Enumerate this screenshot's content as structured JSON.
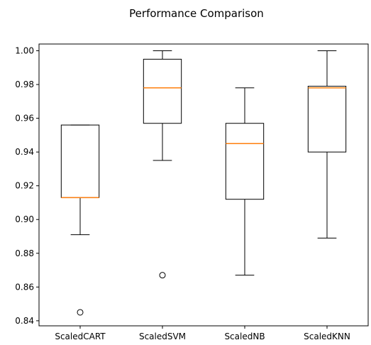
{
  "chart_data": {
    "type": "box",
    "title": "Performance Comparison",
    "xlabel": "",
    "ylabel": "",
    "ylim": [
      0.837,
      1.004
    ],
    "y_ticks": [
      "0.84",
      "0.86",
      "0.88",
      "0.90",
      "0.92",
      "0.94",
      "0.96",
      "0.98",
      "1.00"
    ],
    "categories": [
      "ScaledCART",
      "ScaledSVM",
      "ScaledNB",
      "ScaledKNN"
    ],
    "series": [
      {
        "category": "ScaledCART",
        "whisker_low": 0.891,
        "q1": 0.913,
        "median": 0.913,
        "q3": 0.956,
        "whisker_high": 0.956,
        "outliers": [
          0.845
        ]
      },
      {
        "category": "ScaledSVM",
        "whisker_low": 0.935,
        "q1": 0.957,
        "median": 0.978,
        "q3": 0.995,
        "whisker_high": 1.0,
        "outliers": [
          0.867
        ]
      },
      {
        "category": "ScaledNB",
        "whisker_low": 0.867,
        "q1": 0.912,
        "median": 0.945,
        "q3": 0.957,
        "whisker_high": 0.978,
        "outliers": []
      },
      {
        "category": "ScaledKNN",
        "whisker_low": 0.889,
        "q1": 0.94,
        "median": 0.978,
        "q3": 0.979,
        "whisker_high": 1.0,
        "outliers": []
      }
    ],
    "colors": {
      "box": "#000000",
      "median": "#ff7f0e",
      "outlier": "#000000"
    },
    "grid": false,
    "legend": "none"
  }
}
